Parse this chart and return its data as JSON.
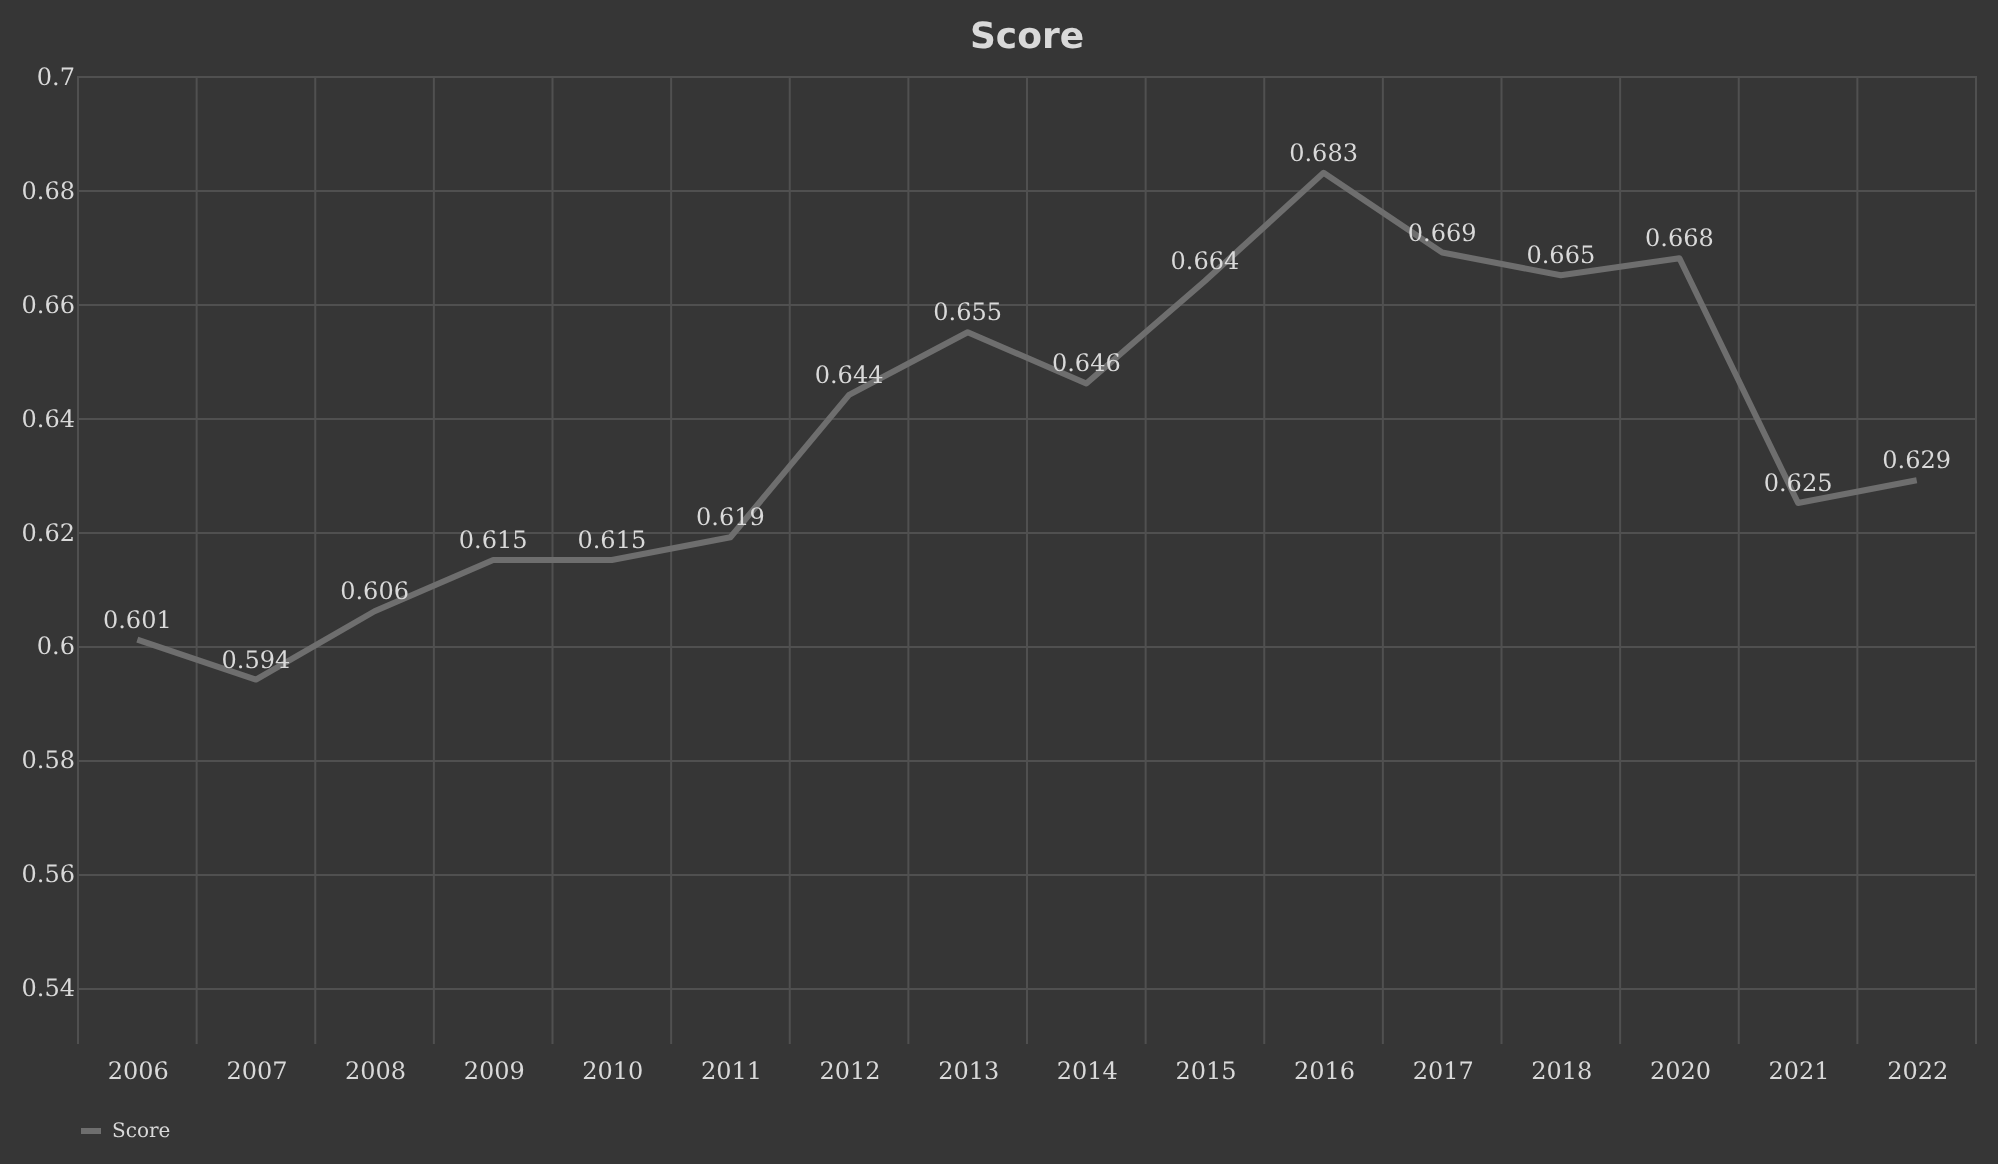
{
  "chart_data": {
    "type": "line",
    "title": "Score",
    "categories": [
      "2006",
      "2007",
      "2008",
      "2009",
      "2010",
      "2011",
      "2012",
      "2013",
      "2014",
      "2015",
      "2016",
      "2017",
      "2018",
      "2020",
      "2021",
      "2022"
    ],
    "series": [
      {
        "name": "Score",
        "color": "#6e6e6e",
        "values": [
          0.601,
          0.594,
          0.606,
          0.615,
          0.615,
          0.619,
          0.644,
          0.655,
          0.646,
          0.664,
          0.683,
          0.669,
          0.665,
          0.668,
          0.625,
          0.629
        ]
      }
    ],
    "ylim": [
      0.53,
      0.7
    ],
    "yticks": [
      0.54,
      0.56,
      0.58,
      0.6,
      0.62,
      0.64,
      0.66,
      0.68,
      0.7
    ],
    "grid": true,
    "legend": "bottom",
    "data_labels": true,
    "marker": "none",
    "line_style": "solid"
  }
}
